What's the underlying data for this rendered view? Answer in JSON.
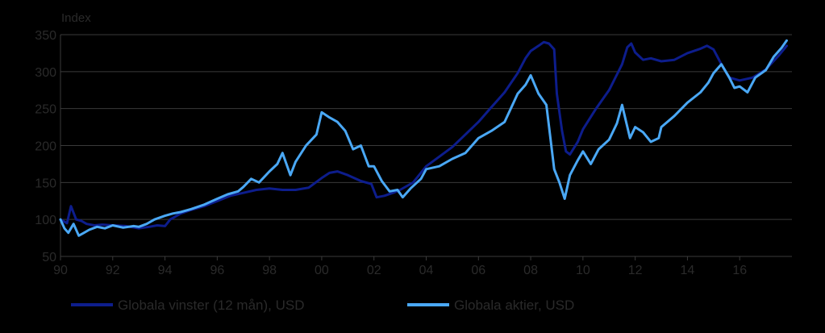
{
  "chart_data": {
    "type": "line",
    "ylabel": "Index",
    "ylim": [
      50,
      350
    ],
    "yticks": [
      "50",
      "100",
      "150",
      "200",
      "250",
      "300",
      "350"
    ],
    "xlim": [
      1990,
      2018
    ],
    "xticks": [
      "90",
      "92",
      "94",
      "96",
      "98",
      "00",
      "02",
      "04",
      "06",
      "08",
      "10",
      "12",
      "14",
      "16"
    ],
    "grid": true,
    "legend_position": "bottom",
    "series": [
      {
        "name": "Globala vinster (12 mån), USD",
        "color": "#0d1d8c",
        "points": [
          [
            1990.0,
            100
          ],
          [
            1990.25,
            95
          ],
          [
            1990.4,
            118
          ],
          [
            1990.6,
            100
          ],
          [
            1990.8,
            98
          ],
          [
            1991.0,
            94
          ],
          [
            1991.3,
            92
          ],
          [
            1991.6,
            93
          ],
          [
            1992.0,
            92
          ],
          [
            1992.5,
            91
          ],
          [
            1993.0,
            88
          ],
          [
            1993.4,
            90
          ],
          [
            1993.7,
            92
          ],
          [
            1994.0,
            91
          ],
          [
            1994.2,
            100
          ],
          [
            1994.6,
            108
          ],
          [
            1995.0,
            113
          ],
          [
            1995.5,
            118
          ],
          [
            1996.0,
            125
          ],
          [
            1996.5,
            132
          ],
          [
            1997.0,
            136
          ],
          [
            1997.5,
            140
          ],
          [
            1998.0,
            142
          ],
          [
            1998.5,
            140
          ],
          [
            1999.0,
            140
          ],
          [
            1999.5,
            143
          ],
          [
            2000.0,
            156
          ],
          [
            2000.3,
            163
          ],
          [
            2000.6,
            165
          ],
          [
            2001.0,
            160
          ],
          [
            2001.5,
            152
          ],
          [
            2001.9,
            148
          ],
          [
            2002.1,
            130
          ],
          [
            2002.4,
            132
          ],
          [
            2002.8,
            137
          ],
          [
            2003.0,
            140
          ],
          [
            2003.5,
            150
          ],
          [
            2004.0,
            172
          ],
          [
            2004.5,
            185
          ],
          [
            2005.0,
            198
          ],
          [
            2005.5,
            215
          ],
          [
            2006.0,
            232
          ],
          [
            2006.5,
            252
          ],
          [
            2007.0,
            272
          ],
          [
            2007.5,
            298
          ],
          [
            2007.8,
            318
          ],
          [
            2008.0,
            328
          ],
          [
            2008.3,
            335
          ],
          [
            2008.5,
            340
          ],
          [
            2008.7,
            338
          ],
          [
            2008.9,
            330
          ],
          [
            2009.0,
            270
          ],
          [
            2009.2,
            220
          ],
          [
            2009.35,
            192
          ],
          [
            2009.5,
            188
          ],
          [
            2009.8,
            205
          ],
          [
            2010.0,
            222
          ],
          [
            2010.5,
            250
          ],
          [
            2011.0,
            275
          ],
          [
            2011.5,
            310
          ],
          [
            2011.7,
            333
          ],
          [
            2011.85,
            338
          ],
          [
            2012.0,
            326
          ],
          [
            2012.3,
            316
          ],
          [
            2012.6,
            318
          ],
          [
            2013.0,
            314
          ],
          [
            2013.5,
            316
          ],
          [
            2014.0,
            325
          ],
          [
            2014.5,
            331
          ],
          [
            2014.75,
            335
          ],
          [
            2015.0,
            330
          ],
          [
            2015.3,
            310
          ],
          [
            2015.6,
            292
          ],
          [
            2016.0,
            288
          ],
          [
            2016.5,
            292
          ],
          [
            2017.0,
            303
          ],
          [
            2017.5,
            322
          ],
          [
            2017.8,
            335
          ]
        ]
      },
      {
        "name": "Globala aktier, USD",
        "color": "#4aa8f5",
        "points": [
          [
            1990.0,
            100
          ],
          [
            1990.15,
            88
          ],
          [
            1990.3,
            82
          ],
          [
            1990.5,
            94
          ],
          [
            1990.7,
            78
          ],
          [
            1990.9,
            82
          ],
          [
            1991.1,
            86
          ],
          [
            1991.4,
            90
          ],
          [
            1991.7,
            88
          ],
          [
            1992.0,
            92
          ],
          [
            1992.4,
            89
          ],
          [
            1992.8,
            91
          ],
          [
            1993.0,
            90
          ],
          [
            1993.3,
            94
          ],
          [
            1993.6,
            100
          ],
          [
            1994.0,
            105
          ],
          [
            1994.3,
            108
          ],
          [
            1994.6,
            110
          ],
          [
            1995.0,
            114
          ],
          [
            1995.5,
            120
          ],
          [
            1996.0,
            128
          ],
          [
            1996.4,
            134
          ],
          [
            1996.8,
            138
          ],
          [
            1997.0,
            144
          ],
          [
            1997.3,
            155
          ],
          [
            1997.6,
            150
          ],
          [
            1998.0,
            165
          ],
          [
            1998.3,
            175
          ],
          [
            1998.5,
            190
          ],
          [
            1998.8,
            160
          ],
          [
            1999.0,
            178
          ],
          [
            1999.4,
            200
          ],
          [
            1999.8,
            215
          ],
          [
            2000.0,
            245
          ],
          [
            2000.3,
            238
          ],
          [
            2000.6,
            232
          ],
          [
            2000.9,
            220
          ],
          [
            2001.2,
            195
          ],
          [
            2001.5,
            200
          ],
          [
            2001.8,
            172
          ],
          [
            2002.0,
            172
          ],
          [
            2002.3,
            152
          ],
          [
            2002.6,
            138
          ],
          [
            2002.9,
            140
          ],
          [
            2003.1,
            130
          ],
          [
            2003.4,
            142
          ],
          [
            2003.8,
            155
          ],
          [
            2004.0,
            168
          ],
          [
            2004.5,
            172
          ],
          [
            2005.0,
            182
          ],
          [
            2005.5,
            190
          ],
          [
            2006.0,
            210
          ],
          [
            2006.5,
            220
          ],
          [
            2007.0,
            232
          ],
          [
            2007.5,
            270
          ],
          [
            2007.8,
            282
          ],
          [
            2008.0,
            295
          ],
          [
            2008.3,
            270
          ],
          [
            2008.6,
            255
          ],
          [
            2008.9,
            168
          ],
          [
            2009.1,
            150
          ],
          [
            2009.3,
            128
          ],
          [
            2009.5,
            160
          ],
          [
            2009.8,
            180
          ],
          [
            2010.0,
            192
          ],
          [
            2010.3,
            175
          ],
          [
            2010.6,
            195
          ],
          [
            2011.0,
            208
          ],
          [
            2011.3,
            230
          ],
          [
            2011.5,
            255
          ],
          [
            2011.8,
            210
          ],
          [
            2012.0,
            225
          ],
          [
            2012.3,
            218
          ],
          [
            2012.6,
            205
          ],
          [
            2012.9,
            210
          ],
          [
            2013.0,
            225
          ],
          [
            2013.5,
            240
          ],
          [
            2014.0,
            258
          ],
          [
            2014.5,
            272
          ],
          [
            2014.8,
            285
          ],
          [
            2015.0,
            298
          ],
          [
            2015.3,
            310
          ],
          [
            2015.6,
            292
          ],
          [
            2015.8,
            278
          ],
          [
            2016.0,
            280
          ],
          [
            2016.3,
            272
          ],
          [
            2016.6,
            292
          ],
          [
            2017.0,
            302
          ],
          [
            2017.3,
            320
          ],
          [
            2017.6,
            332
          ],
          [
            2017.8,
            342
          ]
        ]
      }
    ]
  }
}
